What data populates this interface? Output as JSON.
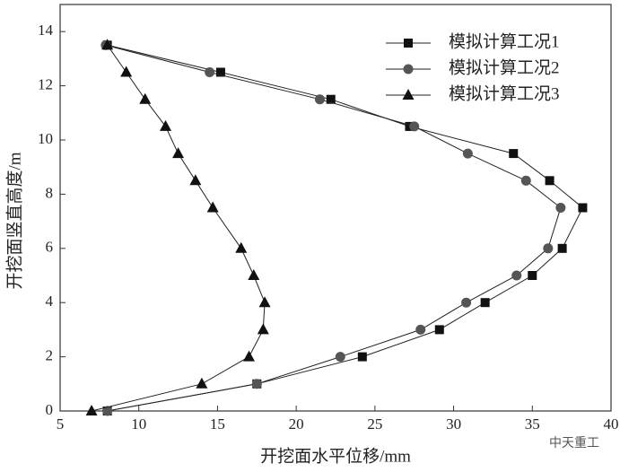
{
  "chart_data": {
    "type": "line",
    "x_label": "开挖面水平位移/mm",
    "y_label": "开挖面竖直高度/m",
    "xlim": [
      5,
      40
    ],
    "xticks": [
      5,
      10,
      15,
      20,
      25,
      30,
      35,
      40
    ],
    "ylim": [
      0,
      15
    ],
    "yticks": [
      0,
      2,
      4,
      6,
      8,
      10,
      12,
      14
    ],
    "legend": "upper-right",
    "watermark": "中天重工",
    "series": [
      {
        "name": "模拟计算工况1",
        "color": "#111111",
        "marker": "square",
        "x": [
          8.0,
          15.2,
          22.2,
          27.2,
          33.8,
          36.1,
          38.2,
          36.9,
          35.0,
          32.0,
          29.1,
          24.2,
          17.5,
          8.0
        ],
        "values": [
          13.5,
          12.5,
          11.5,
          10.5,
          9.5,
          8.5,
          7.5,
          6,
          5,
          4,
          3,
          2,
          1,
          0
        ]
      },
      {
        "name": "模拟计算工况2",
        "color": "#555555",
        "marker": "circle",
        "x": [
          7.9,
          14.5,
          21.5,
          27.5,
          30.9,
          34.6,
          36.8,
          36.0,
          34.0,
          30.8,
          27.9,
          22.8,
          17.5,
          8.0
        ],
        "values": [
          13.5,
          12.5,
          11.5,
          10.5,
          9.5,
          8.5,
          7.5,
          6,
          5,
          4,
          3,
          2,
          1,
          0
        ]
      },
      {
        "name": "模拟计算工况3",
        "color": "#111111",
        "marker": "triangle",
        "x": [
          8.0,
          9.2,
          10.4,
          11.7,
          12.5,
          13.6,
          14.7,
          16.5,
          17.3,
          18.0,
          17.9,
          17.0,
          14.0,
          7.0
        ],
        "values": [
          13.5,
          12.5,
          11.5,
          10.5,
          9.5,
          8.5,
          7.5,
          6,
          5,
          4,
          3,
          2,
          1,
          0
        ]
      }
    ]
  }
}
